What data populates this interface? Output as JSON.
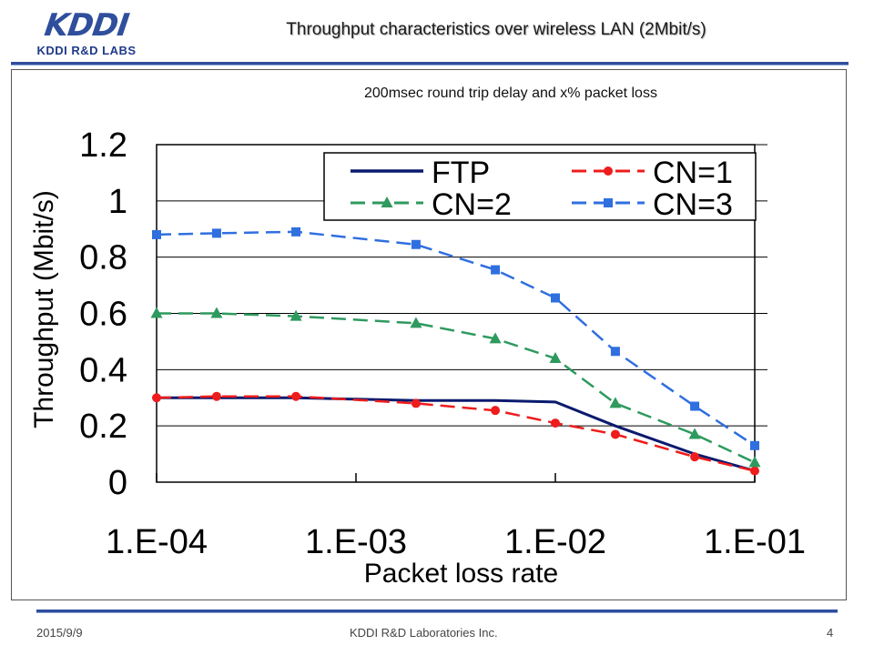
{
  "header": {
    "logo_mark": "KDDI",
    "logo_sub": "KDDI R&D LABS",
    "title": "Throughput characteristics over wireless LAN (2Mbit/s)"
  },
  "subtitle": "200msec round trip delay and x% packet loss",
  "footer": {
    "date": "2015/9/9",
    "org": "KDDI R&D Laboratories Inc.",
    "page": "4"
  },
  "colors": {
    "brand": "#2f4e9c",
    "FTP": "#0a1a6e",
    "CN=1": "#ee1c1c",
    "CN=2": "#2e9a5e",
    "CN=3": "#2f6fe0"
  },
  "chart_data": {
    "type": "line",
    "xscale": "log",
    "xlabel": "Packet loss rate",
    "ylabel": "Throughput (Mbit/s)",
    "xticks": [
      "1.E-04",
      "1.E-03",
      "1.E-02",
      "1.E-01"
    ],
    "yticks": [
      "0",
      "0.2",
      "0.4",
      "0.6",
      "0.8",
      "1",
      "1.2"
    ],
    "xlim": [
      0.0001,
      0.1
    ],
    "ylim": [
      0,
      1.2
    ],
    "grid": "horizontal",
    "legend_position": "top-right",
    "series": [
      {
        "name": "FTP",
        "marker": "none",
        "dash": "solid",
        "x": [
          0.0001,
          0.0002,
          0.0005,
          0.001,
          0.002,
          0.005,
          0.01,
          0.02,
          0.05,
          0.1
        ],
        "y": [
          0.3,
          0.3,
          0.3,
          0.295,
          0.29,
          0.29,
          0.285,
          0.2,
          0.1,
          0.04
        ]
      },
      {
        "name": "CN=1",
        "marker": "circle",
        "dash": "dashed",
        "x": [
          0.0001,
          0.0002,
          0.0005,
          0.002,
          0.005,
          0.01,
          0.02,
          0.05,
          0.1
        ],
        "y": [
          0.3,
          0.305,
          0.305,
          0.28,
          0.255,
          0.21,
          0.17,
          0.09,
          0.04
        ]
      },
      {
        "name": "CN=2",
        "marker": "triangle",
        "dash": "dashed",
        "x": [
          0.0001,
          0.0002,
          0.0005,
          0.002,
          0.005,
          0.01,
          0.02,
          0.05,
          0.1
        ],
        "y": [
          0.6,
          0.6,
          0.59,
          0.565,
          0.51,
          0.44,
          0.28,
          0.17,
          0.07
        ]
      },
      {
        "name": "CN=3",
        "marker": "square",
        "dash": "dashed",
        "x": [
          0.0001,
          0.0002,
          0.0005,
          0.002,
          0.005,
          0.01,
          0.02,
          0.05,
          0.1
        ],
        "y": [
          0.88,
          0.885,
          0.89,
          0.845,
          0.755,
          0.655,
          0.465,
          0.27,
          0.13
        ]
      }
    ]
  }
}
